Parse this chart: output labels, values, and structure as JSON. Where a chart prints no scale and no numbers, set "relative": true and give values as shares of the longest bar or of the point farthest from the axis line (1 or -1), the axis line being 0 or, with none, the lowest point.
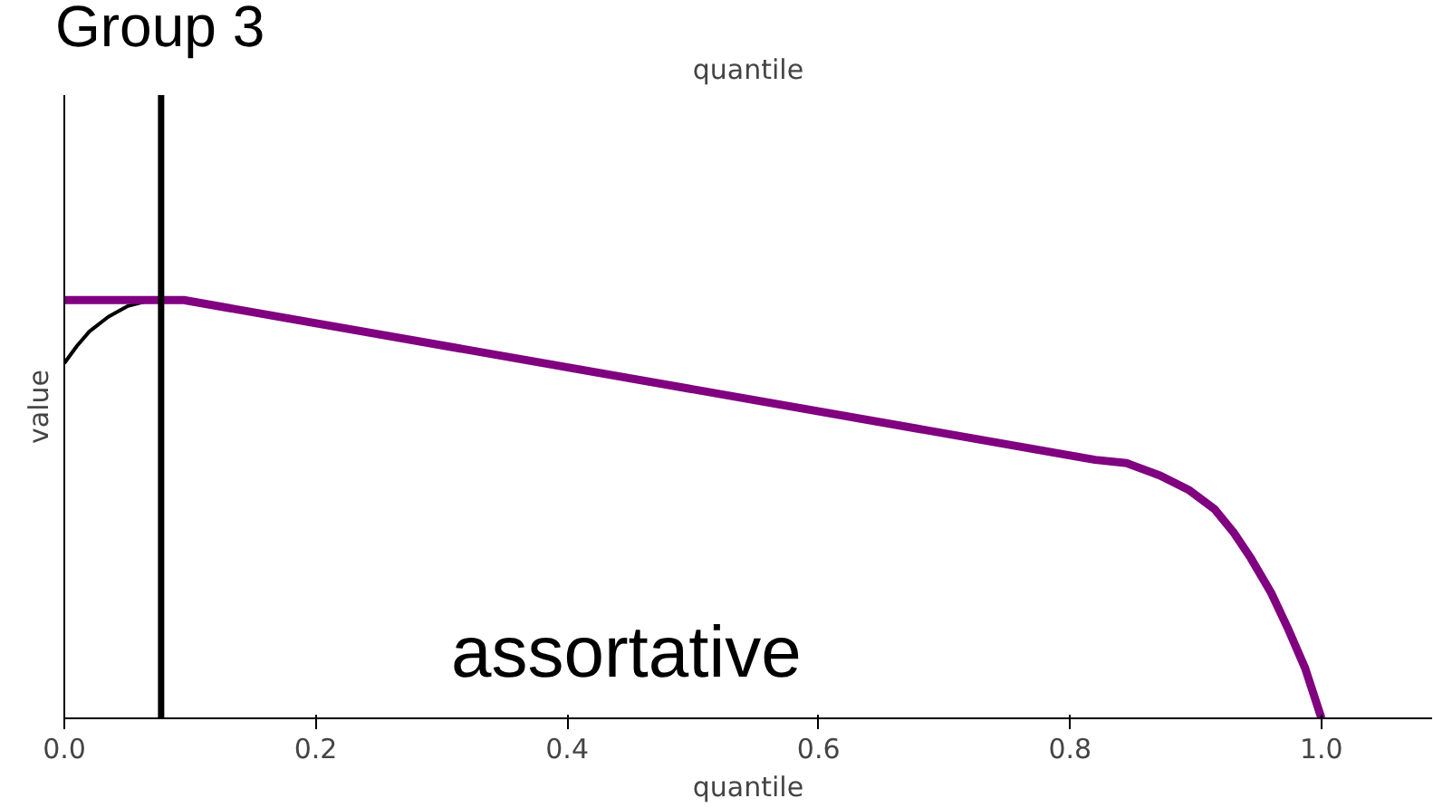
{
  "chart_data": {
    "type": "line",
    "title": "Group 3",
    "xlabel": "quantile",
    "x2label": "quantile",
    "ylabel": "value",
    "relative": true,
    "xlim": [
      0.0,
      1.088
    ],
    "xticks": [
      {
        "value": 0.0,
        "label": "0.0"
      },
      0.2,
      0.4,
      0.6,
      0.8,
      {
        "value": 1.0,
        "label": "1.0"
      }
    ],
    "series": [
      {
        "color": "#000000",
        "x": [
          0.0,
          0.01,
          0.02,
          0.035,
          0.05,
          0.065,
          0.077
        ],
        "values": [
          0.849,
          0.89,
          0.925,
          0.96,
          0.985,
          0.997,
          1.0
        ]
      },
      {
        "color": "#800080",
        "x": [
          0.0,
          0.095,
          0.82,
          0.845,
          0.872,
          0.895,
          0.915,
          0.93,
          0.944,
          0.96,
          0.973,
          0.987,
          1.0
        ],
        "values": [
          1.0,
          1.0,
          0.618,
          0.61,
          0.58,
          0.545,
          0.5,
          0.445,
          0.382,
          0.3,
          0.217,
          0.12,
          0.0
        ]
      }
    ],
    "ref_lines": [
      {
        "axis": "x",
        "value": 0.077,
        "color": "#000000"
      }
    ],
    "annotations": [
      "assortative"
    ],
    "grid": false
  }
}
